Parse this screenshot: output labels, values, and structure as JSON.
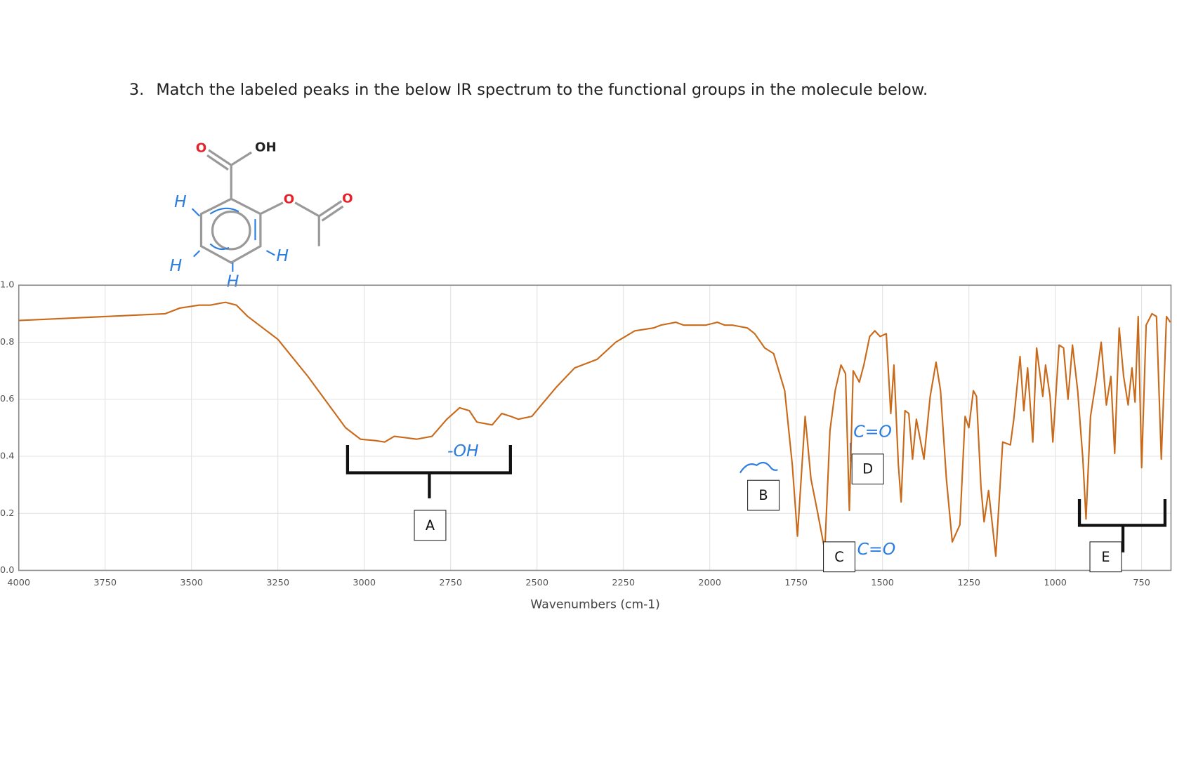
{
  "question": {
    "number": "3.",
    "text": "Match the labeled peaks in the below IR spectrum to the functional groups in the molecule below."
  },
  "molecule": {
    "atoms": [
      "O",
      "OH",
      "O",
      "O"
    ],
    "handwritten": [
      "H",
      "H",
      "H",
      "H"
    ]
  },
  "chart_data": {
    "type": "line",
    "xlabel": "Wavenumbers (cm-1)",
    "color": "#c96a1b",
    "xlim": [
      4000,
      665
    ],
    "ylim": [
      0,
      1
    ],
    "xticks": [
      4000,
      3750,
      3500,
      3250,
      3000,
      2750,
      2500,
      2250,
      2000,
      1750,
      1500,
      1250,
      1000,
      750
    ],
    "yticks": [
      {
        "value": 0,
        "label": "0.0"
      },
      0.2,
      0.4,
      0.6,
      0.8,
      {
        "value": 1,
        "label": "1.0"
      }
    ],
    "grid": true,
    "x": [
      4000,
      3750,
      3576,
      3533,
      3478,
      3446,
      3402,
      3370,
      3337,
      3250,
      3163,
      3054,
      3011,
      2967,
      2941,
      2913,
      2880,
      2848,
      2804,
      2761,
      2724,
      2696,
      2674,
      2630,
      2602,
      2576,
      2554,
      2515,
      2446,
      2391,
      2326,
      2272,
      2217,
      2163,
      2141,
      2098,
      2076,
      2011,
      1978,
      1957,
      1935,
      1891,
      1870,
      1841,
      1815,
      1783,
      1761,
      1746,
      1724,
      1707,
      1689,
      1667,
      1652,
      1637,
      1620,
      1607,
      1596,
      1585,
      1567,
      1554,
      1537,
      1522,
      1507,
      1489,
      1476,
      1467,
      1454,
      1446,
      1435,
      1424,
      1413,
      1402,
      1380,
      1362,
      1345,
      1332,
      1315,
      1298,
      1276,
      1261,
      1250,
      1237,
      1228,
      1215,
      1206,
      1193,
      1172,
      1152,
      1130,
      1120,
      1102,
      1091,
      1080,
      1065,
      1054,
      1036,
      1028,
      1015,
      1007,
      989,
      976,
      963,
      950,
      935,
      920,
      911,
      898,
      880,
      867,
      852,
      839,
      828,
      815,
      802,
      789,
      778,
      769,
      760,
      750,
      737,
      720,
      707,
      693,
      678,
      667
    ],
    "values": [
      0.876,
      0.89,
      0.9,
      0.92,
      0.93,
      0.93,
      0.94,
      0.93,
      0.89,
      0.81,
      0.68,
      0.5,
      0.46,
      0.455,
      0.45,
      0.47,
      0.465,
      0.46,
      0.47,
      0.53,
      0.57,
      0.56,
      0.52,
      0.51,
      0.55,
      0.54,
      0.53,
      0.54,
      0.64,
      0.71,
      0.74,
      0.8,
      0.84,
      0.85,
      0.86,
      0.87,
      0.86,
      0.86,
      0.87,
      0.86,
      0.86,
      0.85,
      0.83,
      0.78,
      0.76,
      0.63,
      0.37,
      0.12,
      0.54,
      0.32,
      0.21,
      0.07,
      0.49,
      0.63,
      0.72,
      0.69,
      0.21,
      0.7,
      0.66,
      0.72,
      0.82,
      0.84,
      0.82,
      0.83,
      0.55,
      0.72,
      0.37,
      0.24,
      0.56,
      0.55,
      0.39,
      0.53,
      0.39,
      0.61,
      0.73,
      0.63,
      0.32,
      0.1,
      0.16,
      0.54,
      0.5,
      0.63,
      0.61,
      0.29,
      0.17,
      0.28,
      0.05,
      0.45,
      0.44,
      0.53,
      0.75,
      0.56,
      0.71,
      0.45,
      0.78,
      0.61,
      0.72,
      0.61,
      0.45,
      0.79,
      0.78,
      0.6,
      0.79,
      0.63,
      0.39,
      0.18,
      0.54,
      0.68,
      0.8,
      0.58,
      0.68,
      0.41,
      0.85,
      0.68,
      0.58,
      0.71,
      0.59,
      0.89,
      0.36,
      0.86,
      0.9,
      0.89,
      0.39,
      0.89,
      0.87
    ],
    "annotations": {
      "peak_labels": [
        "A",
        "B",
        "C",
        "D",
        "E"
      ],
      "handwritten": [
        "-OH",
        "C=O",
        "C=O"
      ]
    }
  }
}
